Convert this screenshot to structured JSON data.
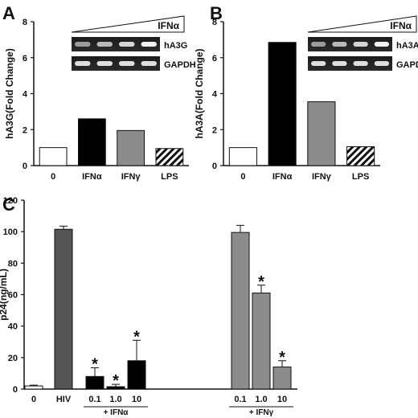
{
  "chart_data": [
    {
      "panel": "A",
      "type": "bar",
      "categories": [
        "0",
        "IFNα",
        "IFNγ",
        "LPS"
      ],
      "values": [
        1.0,
        2.6,
        1.95,
        0.95
      ],
      "bar_styles": [
        "white",
        "black",
        "gray",
        "hatched"
      ],
      "ylabel": "hA3G(Fold Change)",
      "ylim": [
        0,
        8
      ],
      "yticks": [
        "0",
        "2",
        "4",
        "6",
        "8"
      ],
      "inset": {
        "triangle_label": "IFNα",
        "bands": [
          "hA3G",
          "GAPDH"
        ]
      }
    },
    {
      "panel": "B",
      "type": "bar",
      "categories": [
        "0",
        "IFNα",
        "IFNγ",
        "LPS"
      ],
      "values": [
        1.0,
        6.85,
        3.55,
        1.05
      ],
      "bar_styles": [
        "white",
        "black",
        "gray",
        "hatched"
      ],
      "ylabel": "hA3A(Fold Change)",
      "ylim": [
        0,
        8
      ],
      "yticks": [
        "0",
        "2",
        "4",
        "6",
        "8"
      ],
      "inset": {
        "triangle_label": "IFNα",
        "bands": [
          "hA3A",
          "GAPDH"
        ]
      }
    },
    {
      "panel": "C",
      "type": "bar",
      "categories": [
        "0",
        "HIV",
        "0.1",
        "1.0",
        "10",
        "0.1",
        "1.0",
        "10"
      ],
      "values": [
        2,
        101.5,
        8,
        1.5,
        18,
        99.5,
        61,
        14
      ],
      "errors": [
        0.5,
        2,
        5.5,
        1.5,
        13,
        4.5,
        5,
        4
      ],
      "significant": [
        false,
        false,
        true,
        true,
        true,
        false,
        true,
        true
      ],
      "significance_mark": "*",
      "bar_styles": [
        "white",
        "darkgray",
        "black",
        "black",
        "black",
        "gray",
        "gray",
        "gray"
      ],
      "groups": [
        {
          "label": "+ IFNα",
          "from": 2,
          "to": 4
        },
        {
          "label": "+ IFNγ",
          "from": 5,
          "to": 7
        }
      ],
      "ylabel": "p24(ng/mL)",
      "ylim": [
        0,
        120
      ],
      "yticks": [
        "0",
        "20",
        "40",
        "60",
        "80",
        "100",
        "120"
      ]
    }
  ]
}
